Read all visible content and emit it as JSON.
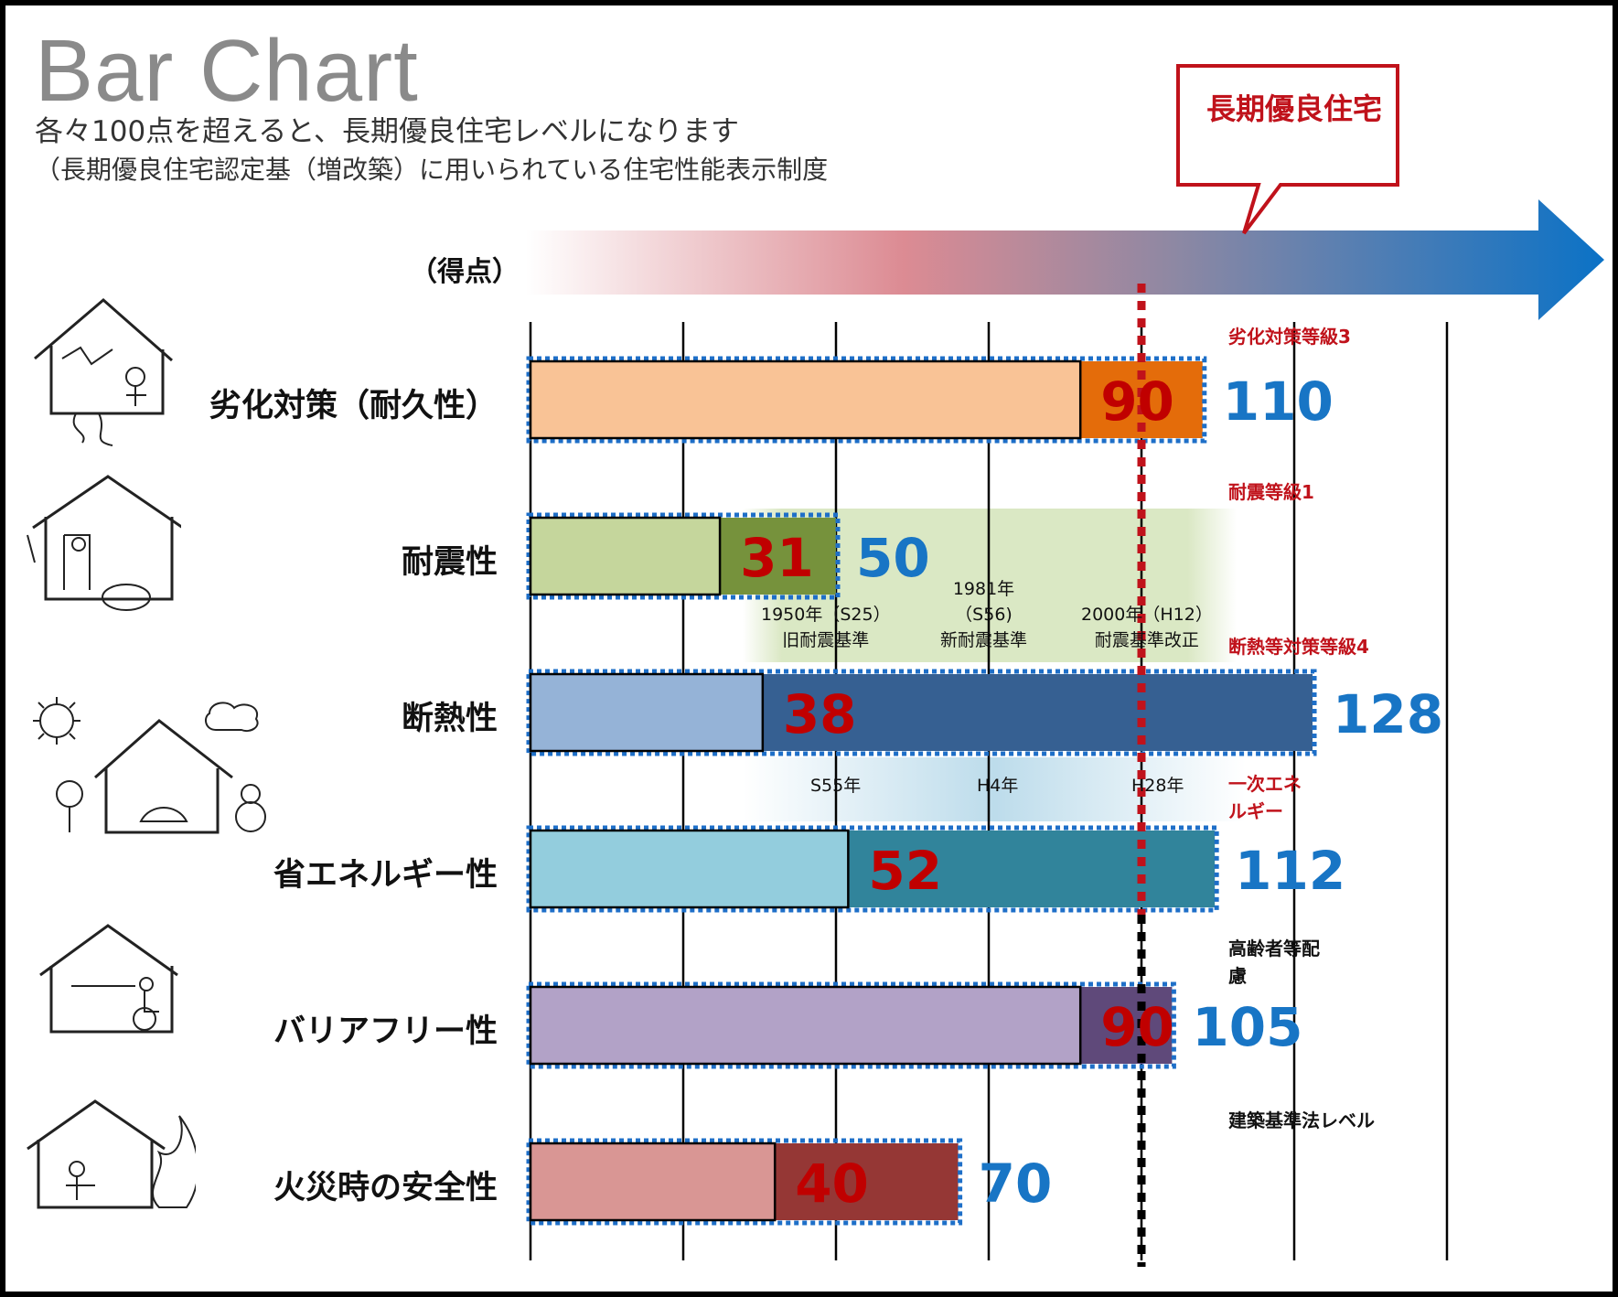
{
  "title": "Bar Chart",
  "subtitle1": "各々100点を超えると、長期優良住宅レベルになります",
  "subtitle2": "（長期優良住宅認定基（増改築）に用いられている住宅性能表示制度",
  "axis_label": "（得点）",
  "callout": "長期優良住宅",
  "side_notes": {
    "deterioration": "劣化対策等級3",
    "seismic": "耐震等級1",
    "insulation": "断熱等対策等級4",
    "energy": "一次エネルギー",
    "elderly": "高齢者等配慮",
    "building_standard": "建築基準法レベル"
  },
  "eras_seismic": [
    {
      "line1": "1950年（S25）",
      "line2": "旧耐震基準"
    },
    {
      "line0": "1981年",
      "line1": "（S56)",
      "line2": "新耐震基準"
    },
    {
      "line1": "2000年（H12）",
      "line2": "耐震基準改正"
    }
  ],
  "eras_insulation": [
    "S55年",
    "H4年",
    "H28年"
  ],
  "chart_data": {
    "type": "bar",
    "orientation": "horizontal",
    "categories": [
      "劣化対策（耐久性）",
      "耐震性",
      "断熱性",
      "省エネルギー性",
      "バリアフリー性",
      "火災時の安全性"
    ],
    "series": [
      {
        "values": [
          90,
          31,
          38,
          52,
          90,
          40
        ]
      },
      {
        "values": [
          110,
          50,
          128,
          112,
          105,
          70
        ]
      }
    ],
    "reference_line": 100,
    "xlim": [
      0,
      150
    ],
    "grid": true,
    "colors": {
      "current": [
        "#f9c396",
        "#c5d69c",
        "#95b3d7",
        "#93cddd",
        "#b2a2c7",
        "#d99694"
      ],
      "target": [
        "#e46c0a",
        "#76923c",
        "#366092",
        "#31849b",
        "#5f497a",
        "#953735"
      ],
      "current_label": "#c00000",
      "target_label": "#1875c5",
      "reference": "#c0121b"
    }
  }
}
